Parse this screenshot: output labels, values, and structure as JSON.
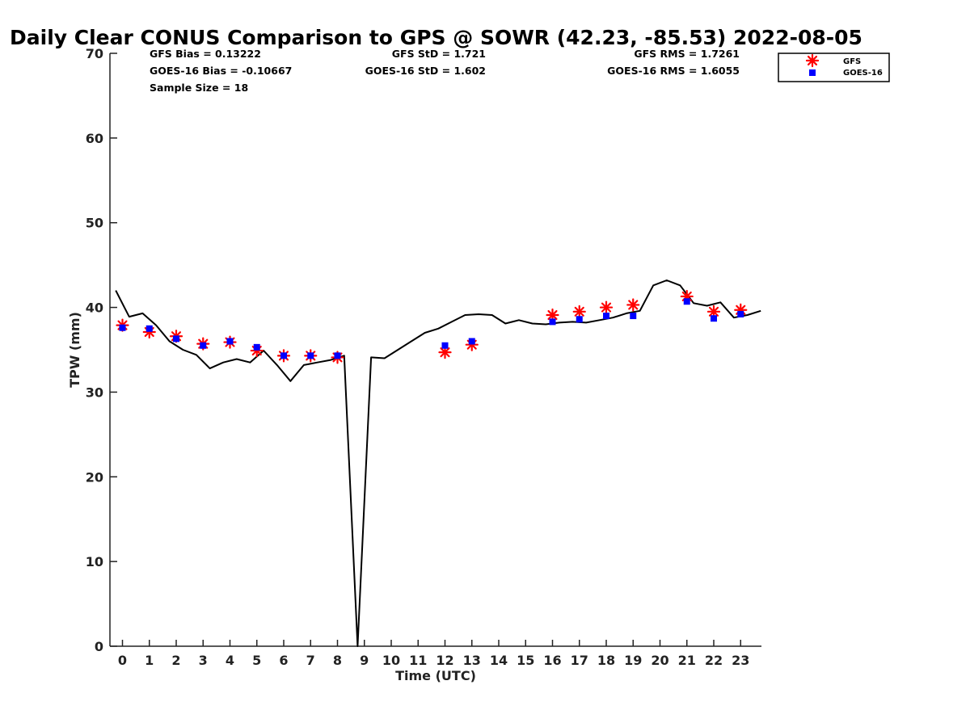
{
  "chart_data": {
    "type": "scatter",
    "title": "Daily Clear CONUS Comparison to GPS @ SOWR (42.23, -85.53) 2022-08-05",
    "xlabel": "Time (UTC)",
    "ylabel": "TPW (mm)",
    "ylim": [
      0,
      70
    ],
    "yticks": [
      0,
      10,
      20,
      30,
      40,
      50,
      60,
      70
    ],
    "xticks": [
      "0",
      "1",
      "2",
      "3",
      "4",
      "5",
      "6",
      "7",
      "8",
      "9",
      "10",
      "11",
      "12",
      "13",
      "14",
      "15",
      "16",
      "17",
      "18",
      "19",
      "20",
      "21",
      "22",
      "23"
    ],
    "stats": {
      "gfs_bias": "GFS Bias = 0.13222",
      "goes_bias": "GOES-16 Bias = -0.10667",
      "sample_size": "Sample Size = 18",
      "gfs_std": "GFS StD = 1.721",
      "goes_std": "GOES-16 StD = 1.602",
      "gfs_rms": "GFS RMS = 1.7261",
      "goes_rms": "GOES-16 RMS = 1.6055"
    },
    "legend": {
      "position": "top-right",
      "entries": [
        "GFS",
        "GOES-16"
      ]
    },
    "colors": {
      "gfs": "#ff0000",
      "goes": "#0000ff",
      "gps": "#000000"
    },
    "gps_line": {
      "x": [
        -0.25,
        0.25,
        0.75,
        1.25,
        1.75,
        2.25,
        2.75,
        3.25,
        3.75,
        4.25,
        4.75,
        5.25,
        5.75,
        6.25,
        6.75,
        7.25,
        7.75,
        8.25,
        8.75,
        9.25,
        9.75,
        10.25,
        10.75,
        11.25,
        11.75,
        12.25,
        12.75,
        13.25,
        13.75,
        14.25,
        14.75,
        15.25,
        15.75,
        16.25,
        16.75,
        17.25,
        17.75,
        18.25,
        18.75,
        19.25,
        19.75,
        20.25,
        20.75,
        21.25,
        21.75,
        22.25,
        22.75,
        23.25,
        23.75
      ],
      "y": [
        42.0,
        38.9,
        39.3,
        37.9,
        36.0,
        35.0,
        34.4,
        32.8,
        33.5,
        33.9,
        33.5,
        34.9,
        33.2,
        31.3,
        33.2,
        33.5,
        33.8,
        34.3,
        0,
        34.1,
        34.0,
        35.0,
        36.0,
        37.0,
        37.5,
        38.3,
        39.1,
        39.2,
        39.1,
        38.1,
        38.5,
        38.1,
        38.0,
        38.2,
        38.3,
        38.2,
        38.5,
        38.8,
        39.3,
        39.6,
        42.6,
        43.2,
        42.6,
        40.5,
        40.2,
        40.6,
        38.8,
        39.1,
        39.6
      ]
    },
    "series": [
      {
        "name": "GFS",
        "x": [
          0,
          1,
          2,
          3,
          4,
          5,
          6,
          7,
          8,
          12,
          13,
          16,
          17,
          18,
          19,
          21,
          22,
          23
        ],
        "y": [
          37.9,
          37.1,
          36.6,
          35.7,
          35.9,
          34.9,
          34.3,
          34.3,
          34.1,
          34.7,
          35.6,
          39.1,
          39.5,
          40.0,
          40.3,
          41.3,
          39.5,
          39.7
        ]
      },
      {
        "name": "GOES-16",
        "x": [
          0,
          1,
          2,
          3,
          4,
          5,
          6,
          7,
          8,
          12,
          13,
          16,
          17,
          18,
          19,
          21,
          22,
          23
        ],
        "y": [
          37.6,
          37.5,
          36.3,
          35.5,
          36.0,
          35.3,
          34.3,
          34.3,
          34.3,
          35.5,
          36.0,
          38.3,
          38.6,
          39.0,
          39.0,
          40.7,
          38.7,
          39.2
        ]
      }
    ]
  }
}
